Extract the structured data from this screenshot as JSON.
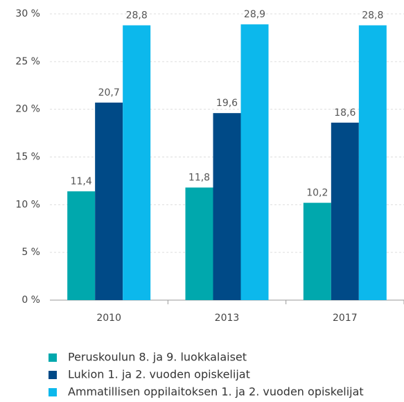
{
  "chart_data": {
    "type": "bar",
    "categories": [
      "2010",
      "2013",
      "2017"
    ],
    "series": [
      {
        "name": "Peruskoulun 8. ja 9. luokkalaiset",
        "color": "#00a8ad",
        "values": [
          11.4,
          11.8,
          10.2
        ],
        "value_labels": [
          "11,4",
          "11,8",
          "10,2"
        ]
      },
      {
        "name": "Lukion 1. ja 2. vuoden opiskelijat",
        "color": "#004a87",
        "values": [
          20.7,
          19.6,
          18.6
        ],
        "value_labels": [
          "20,7",
          "19,6",
          "18,6"
        ]
      },
      {
        "name": "Ammatillisen oppilaitoksen 1. ja 2. vuoden opiskelijat",
        "color": "#0cb8ec",
        "values": [
          28.8,
          28.9,
          28.8
        ],
        "value_labels": [
          "28,8",
          "28,9",
          "28,8"
        ]
      }
    ],
    "ylim": [
      0,
      30
    ],
    "yticks": [
      {
        "value": 0,
        "label": "0 %"
      },
      {
        "value": 5,
        "label": "5 %"
      },
      {
        "value": 10,
        "label": "10 %"
      },
      {
        "value": 15,
        "label": "15 %"
      },
      {
        "value": 20,
        "label": "20 %"
      },
      {
        "value": 25,
        "label": "25 %"
      },
      {
        "value": 30,
        "label": "30 %"
      }
    ],
    "grid": true
  }
}
